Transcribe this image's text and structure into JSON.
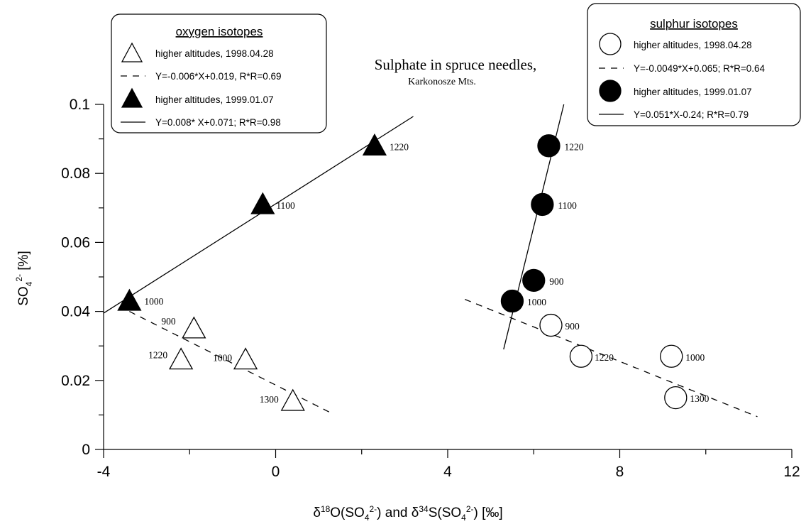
{
  "chart_data": {
    "type": "scatter",
    "title": "Sulphate in spruce needles,",
    "subtitle": "Karkonosze Mts.",
    "xlabel": "δ18O(SO42-) and δ34S(SO42-) [‰]",
    "ylabel": "SO42- [%]",
    "xlim": [
      -4,
      12
    ],
    "ylim": [
      0,
      0.1
    ],
    "x_ticks": [
      -4,
      0,
      4,
      8,
      12
    ],
    "x_tick_labels": [
      "-4",
      "0",
      "4",
      "8",
      "12"
    ],
    "y_ticks": [
      0,
      0.02,
      0.04,
      0.06,
      0.08,
      0.1
    ],
    "y_tick_labels": [
      "0",
      "0.02",
      "0.04",
      "0.06",
      "0.08",
      "0.1"
    ],
    "grid": false,
    "legends": [
      {
        "title": "oxygen isotopes",
        "placement": "top-left",
        "entries": [
          {
            "symbol": "open-triangle",
            "label": "higher altitudes, 1998.04.28"
          },
          {
            "symbol": "dashed-line",
            "label": "Y=-0.006*X+0.019,  R*R=0.69"
          },
          {
            "symbol": "filled-triangle",
            "label": "higher altitudes, 1999.01.07"
          },
          {
            "symbol": "solid-line",
            "label": "Y=0.008* X+0.071; R*R=0.98"
          }
        ]
      },
      {
        "title": "sulphur isotopes",
        "placement": "top-right",
        "entries": [
          {
            "symbol": "open-circle",
            "label": "higher altitudes, 1998.04.28"
          },
          {
            "symbol": "dashed-line",
            "label": "Y=-0.0049*X+0.065; R*R=0.64"
          },
          {
            "symbol": "filled-circle",
            "label": "higher altitudes, 1999.01.07"
          },
          {
            "symbol": "solid-line",
            "label": "Y=0.051*X-0.24; R*R=0.79"
          }
        ]
      }
    ],
    "series": [
      {
        "marker": "open-triangle",
        "points": [
          {
            "x": -1.9,
            "y": 0.035,
            "label": "900"
          },
          {
            "x": -2.2,
            "y": 0.026,
            "label": "1220"
          },
          {
            "x": -0.7,
            "y": 0.026,
            "label": "1000"
          },
          {
            "x": 0.4,
            "y": 0.014,
            "label": "1300"
          }
        ]
      },
      {
        "marker": "filled-triangle",
        "points": [
          {
            "x": -3.4,
            "y": 0.043,
            "label": "1000"
          },
          {
            "x": -0.3,
            "y": 0.071,
            "label": "1100"
          },
          {
            "x": 2.3,
            "y": 0.088,
            "label": "1220"
          }
        ]
      },
      {
        "marker": "open-circle",
        "points": [
          {
            "x": 6.4,
            "y": 0.036,
            "label": "900"
          },
          {
            "x": 7.1,
            "y": 0.027,
            "label": "1220"
          },
          {
            "x": 9.2,
            "y": 0.027,
            "label": "1000"
          },
          {
            "x": 9.3,
            "y": 0.015,
            "label": "1300"
          }
        ]
      },
      {
        "marker": "filled-circle",
        "points": [
          {
            "x": 5.5,
            "y": 0.043,
            "label": "1000"
          },
          {
            "x": 6.0,
            "y": 0.049,
            "label": "900"
          },
          {
            "x": 6.2,
            "y": 0.071,
            "label": "1100"
          },
          {
            "x": 6.35,
            "y": 0.088,
            "label": "1220"
          }
        ]
      }
    ],
    "fit_lines": [
      {
        "style": "dashed",
        "x": [
          -3.4,
          1.3
        ],
        "y": [
          0.04,
          0.0105
        ]
      },
      {
        "style": "solid",
        "x": [
          -4.0,
          3.2
        ],
        "y": [
          0.0395,
          0.0965
        ]
      },
      {
        "style": "dashed",
        "x": [
          4.4,
          11.2
        ],
        "y": [
          0.0435,
          0.0095
        ]
      },
      {
        "style": "solid",
        "x": [
          5.3,
          6.7
        ],
        "y": [
          0.029,
          0.1
        ]
      }
    ]
  }
}
